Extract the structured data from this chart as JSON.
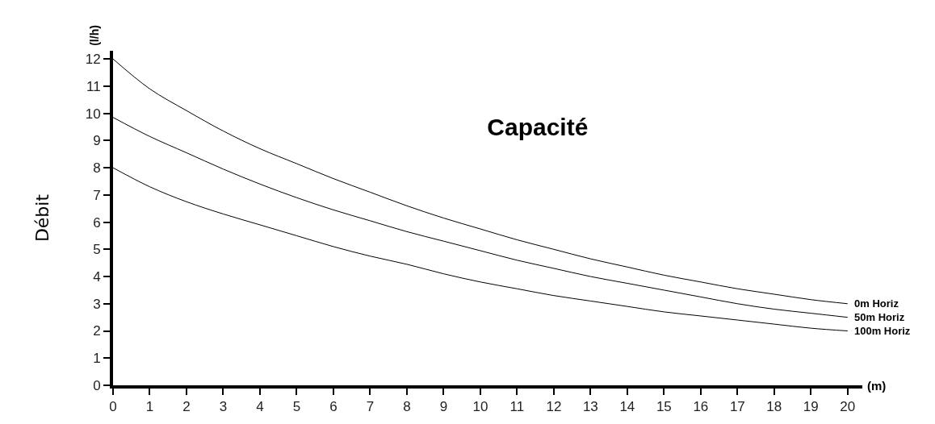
{
  "chart_data": {
    "type": "line",
    "title": "Capacité",
    "ylabel": "Débit",
    "annotations": [
      "(l/h)",
      "(m)"
    ],
    "x": [
      0,
      1,
      2,
      3,
      4,
      5,
      6,
      7,
      8,
      9,
      10,
      11,
      12,
      13,
      14,
      15,
      16,
      17,
      18,
      19,
      20
    ],
    "series": [
      {
        "name": "0m Horiz",
        "color": "#000000",
        "values": [
          12.0,
          10.9,
          10.1,
          9.35,
          8.7,
          8.15,
          7.6,
          7.1,
          6.6,
          6.15,
          5.75,
          5.35,
          5.0,
          4.65,
          4.35,
          4.05,
          3.8,
          3.55,
          3.35,
          3.15,
          3.0
        ]
      },
      {
        "name": "50m Horiz",
        "color": "#000000",
        "values": [
          9.85,
          9.15,
          8.55,
          7.95,
          7.4,
          6.9,
          6.45,
          6.05,
          5.65,
          5.3,
          4.95,
          4.6,
          4.3,
          4.0,
          3.75,
          3.5,
          3.25,
          3.0,
          2.8,
          2.65,
          2.5
        ]
      },
      {
        "name": "100m Horiz",
        "color": "#000000",
        "values": [
          8.0,
          7.3,
          6.75,
          6.3,
          5.9,
          5.5,
          5.1,
          4.75,
          4.45,
          4.1,
          3.8,
          3.55,
          3.3,
          3.1,
          2.9,
          2.7,
          2.55,
          2.4,
          2.25,
          2.1,
          2.0
        ]
      }
    ],
    "xlim": [
      0,
      20.4
    ],
    "xticks": [
      0,
      1,
      2,
      3,
      4,
      5,
      6,
      7,
      8,
      9,
      10,
      11,
      12,
      13,
      14,
      15,
      16,
      17,
      18,
      19,
      20
    ],
    "ylim": [
      0,
      12.3
    ],
    "yticks": [
      0,
      1,
      2,
      3,
      4,
      5,
      6,
      7,
      8,
      9,
      10,
      11,
      12
    ],
    "legend": false,
    "marker": "none",
    "line_style": "solid"
  }
}
